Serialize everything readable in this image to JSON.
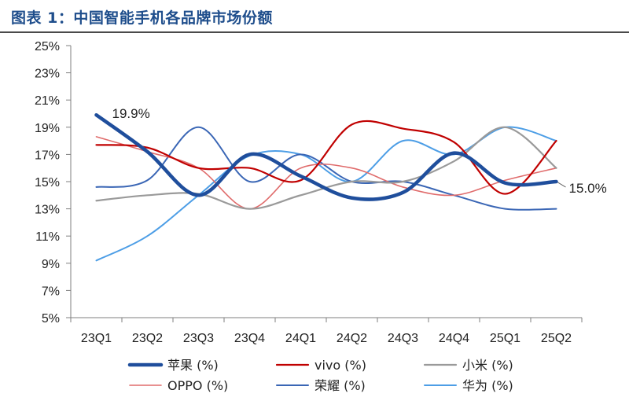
{
  "title": "图表 1：中国智能手机各品牌市场份额",
  "chart_data": {
    "type": "line",
    "categories": [
      "23Q1",
      "23Q2",
      "23Q3",
      "23Q4",
      "24Q1",
      "24Q2",
      "24Q3",
      "24Q4",
      "25Q1",
      "25Q2"
    ],
    "ylim": [
      5,
      25
    ],
    "yticks": [
      5,
      7,
      9,
      11,
      13,
      15,
      17,
      19,
      21,
      23,
      25
    ],
    "ytick_suffix": "%",
    "grid": false,
    "legend_position": "bottom",
    "series": [
      {
        "name": "苹果 (%)",
        "color": "#1f4e9c",
        "width": 4.5,
        "values": [
          19.9,
          17.2,
          14.0,
          17.0,
          15.4,
          13.8,
          14.2,
          17.1,
          14.9,
          15.0
        ]
      },
      {
        "name": "vivo (%)",
        "color": "#c00000",
        "width": 2.2,
        "values": [
          17.7,
          17.5,
          16.0,
          16.0,
          15.1,
          19.2,
          18.9,
          17.9,
          14.1,
          18.0
        ]
      },
      {
        "name": "小米 (%)",
        "color": "#9a9a9a",
        "width": 2.2,
        "values": [
          13.6,
          14.0,
          14.1,
          13.0,
          14.0,
          15.0,
          15.0,
          16.5,
          19.0,
          16.0
        ]
      },
      {
        "name": "OPPO (%)",
        "color": "#e06c6c",
        "width": 1.6,
        "values": [
          18.3,
          17.2,
          16.0,
          13.0,
          16.0,
          16.0,
          14.6,
          14.0,
          15.1,
          16.0
        ]
      },
      {
        "name": "荣耀 (%)",
        "color": "#3a66b5",
        "width": 2.0,
        "values": [
          14.6,
          15.1,
          19.0,
          15.0,
          17.0,
          15.0,
          15.0,
          14.0,
          13.0,
          13.0
        ]
      },
      {
        "name": "华为 (%)",
        "color": "#4d9ee6",
        "width": 2.0,
        "values": [
          9.2,
          11.0,
          14.0,
          16.9,
          17.0,
          15.0,
          18.0,
          17.0,
          19.0,
          18.0
        ]
      }
    ],
    "annotations": [
      {
        "series": 0,
        "index": 0,
        "text": "19.9%"
      },
      {
        "series": 0,
        "index": 9,
        "text": "15.0%"
      }
    ]
  }
}
